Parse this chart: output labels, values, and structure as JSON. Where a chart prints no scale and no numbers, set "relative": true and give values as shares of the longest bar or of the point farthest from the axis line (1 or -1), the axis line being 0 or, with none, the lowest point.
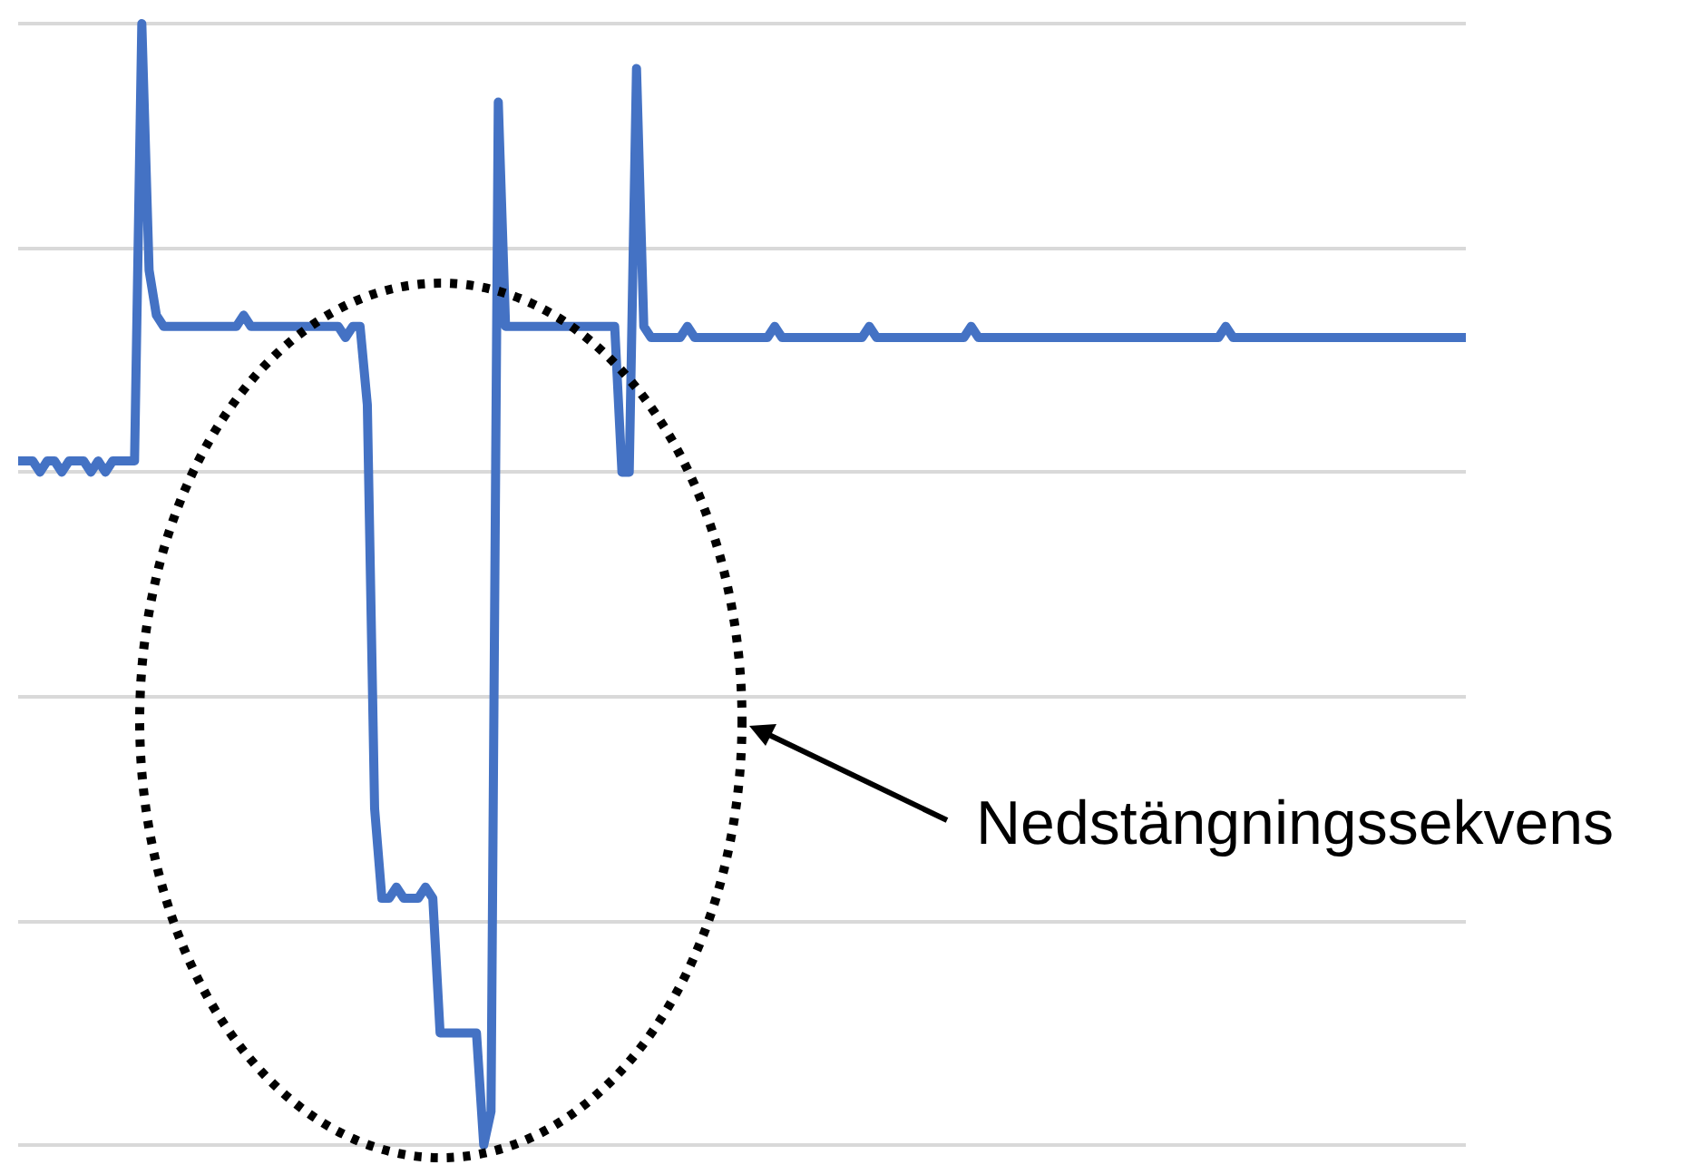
{
  "chart_data": {
    "type": "line",
    "relative": true,
    "color": "#4472c4",
    "grid": "y",
    "annotations": [
      "Nedstängningssekvens"
    ],
    "categories": [
      null,
      null,
      null,
      null,
      null,
      null,
      null,
      null,
      null,
      null,
      null,
      null,
      null,
      null,
      null,
      null,
      null,
      null,
      null,
      null,
      null,
      null,
      null,
      null,
      null,
      null,
      null,
      null,
      null,
      null,
      null,
      null,
      null,
      null,
      null,
      null,
      null,
      null,
      null,
      null,
      null,
      null,
      null,
      null,
      null,
      null,
      null,
      null,
      null,
      null,
      null,
      null,
      null,
      null,
      null,
      null,
      null,
      null,
      null,
      null,
      null,
      null,
      null,
      null,
      null,
      null,
      null,
      null,
      null,
      null,
      null,
      null,
      null,
      null,
      null,
      null,
      null,
      null,
      null,
      null,
      null,
      null,
      null,
      null,
      null,
      null,
      null,
      null,
      null,
      null,
      null,
      null,
      null,
      null,
      null,
      null,
      null,
      null,
      null,
      null,
      null,
      null,
      null,
      null,
      null,
      null,
      null,
      null,
      null,
      null,
      null,
      null,
      null,
      null,
      null,
      null,
      null,
      null,
      null,
      null,
      null,
      null,
      null,
      null,
      null,
      null,
      null,
      null,
      null,
      null,
      null,
      null,
      null,
      null,
      null,
      null,
      null,
      null,
      null,
      null,
      null,
      null,
      null,
      null,
      null,
      null,
      null,
      null,
      null,
      null,
      null,
      null,
      null,
      null,
      null,
      null,
      null,
      null,
      null,
      null,
      null,
      null,
      null,
      null,
      null,
      null,
      null,
      null,
      null,
      null,
      null,
      null,
      null,
      null,
      null,
      null,
      null,
      null,
      null,
      null,
      null,
      null,
      null,
      null,
      null,
      null,
      null,
      null,
      null,
      null,
      null,
      null,
      null,
      null,
      null,
      null,
      null,
      null,
      null,
      null
    ],
    "values": [
      0.61,
      0.61,
      0.61,
      0.6,
      0.61,
      0.61,
      0.6,
      0.61,
      0.61,
      0.61,
      0.6,
      0.61,
      0.6,
      0.61,
      0.61,
      0.61,
      0.61,
      1.0,
      0.78,
      0.74,
      0.73,
      0.73,
      0.73,
      0.73,
      0.73,
      0.73,
      0.73,
      0.73,
      0.73,
      0.73,
      0.73,
      0.74,
      0.73,
      0.73,
      0.73,
      0.73,
      0.73,
      0.73,
      0.73,
      0.73,
      0.73,
      0.73,
      0.73,
      0.73,
      0.73,
      0.72,
      0.73,
      0.73,
      0.66,
      0.3,
      0.22,
      0.22,
      0.23,
      0.22,
      0.22,
      0.22,
      0.23,
      0.22,
      0.1,
      0.1,
      0.1,
      0.1,
      0.1,
      0.1,
      0,
      0.03,
      0.93,
      0.73,
      0.73,
      0.73,
      0.73,
      0.73,
      0.73,
      0.73,
      0.73,
      0.73,
      0.73,
      0.73,
      0.73,
      0.73,
      0.73,
      0.73,
      0.73,
      0.6,
      0.6,
      0.96,
      0.73,
      0.72,
      0.72,
      0.72,
      0.72,
      0.72,
      0.73,
      0.72,
      0.72,
      0.72,
      0.72,
      0.72,
      0.72,
      0.72,
      0.72,
      0.72,
      0.72,
      0.72,
      0.73,
      0.72,
      0.72,
      0.72,
      0.72,
      0.72,
      0.72,
      0.72,
      0.72,
      0.72,
      0.72,
      0.72,
      0.72,
      0.73,
      0.72,
      0.72,
      0.72,
      0.72,
      0.72,
      0.72,
      0.72,
      0.72,
      0.72,
      0.72,
      0.72,
      0.72,
      0.72,
      0.73,
      0.72,
      0.72,
      0.72,
      0.72,
      0.72,
      0.72,
      0.72,
      0.72,
      0.72,
      0.72,
      0.72,
      0.72,
      0.72,
      0.72,
      0.72,
      0.72,
      0.72,
      0.72,
      0.72,
      0.72,
      0.72,
      0.72,
      0.72,
      0.72,
      0.72,
      0.72,
      0.72,
      0.72,
      0.72,
      0.72,
      0.72,
      0.72,
      0.72,
      0.72,
      0.73,
      0.72,
      0.72,
      0.72,
      0.72,
      0.72,
      0.72,
      0.72,
      0.72,
      0.72,
      0.72,
      0.72,
      0.72,
      0.72,
      0.72,
      0.72,
      0.72,
      0.72,
      0.72,
      0.72,
      0.72,
      0.72,
      0.72,
      0.72,
      0.72,
      0.72,
      0.72,
      0.72,
      0.72,
      0.72,
      0.72,
      0.72,
      0.72,
      0.72
    ]
  }
}
